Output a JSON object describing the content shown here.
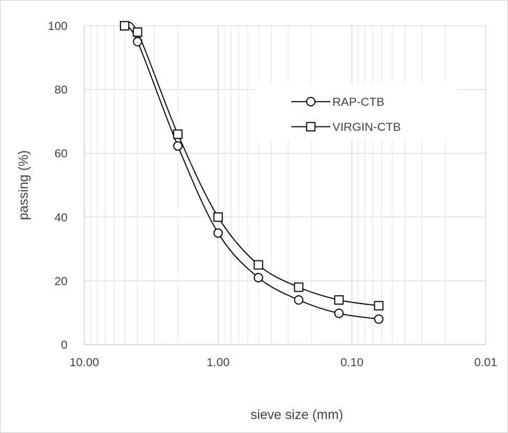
{
  "chart_data": {
    "type": "line",
    "x_scale": "log",
    "x_reversed": true,
    "xlabel": "sieve size (mm)",
    "ylabel": "passing (%)",
    "xlim": [
      10,
      0.01
    ],
    "ylim": [
      0,
      100
    ],
    "x_ticks": [
      "10.00",
      "1.00",
      "0.10",
      "0.01"
    ],
    "y_ticks": [
      "0",
      "20",
      "40",
      "60",
      "80",
      "100"
    ],
    "grid": true,
    "legend_position": "top-right",
    "series": [
      {
        "name": "RAP-CTB",
        "marker": "circle",
        "x": [
          5,
          4,
          2,
          1,
          0.5,
          0.25,
          0.125,
          0.063
        ],
        "y": [
          100,
          95,
          62.3,
          35,
          21,
          14,
          9.8,
          8
        ]
      },
      {
        "name": "VIRGIN-CTB",
        "marker": "square",
        "x": [
          5,
          4,
          2,
          1,
          0.5,
          0.25,
          0.125,
          0.063
        ],
        "y": [
          100,
          98,
          66,
          40,
          25,
          18,
          14,
          12.2
        ]
      }
    ]
  }
}
